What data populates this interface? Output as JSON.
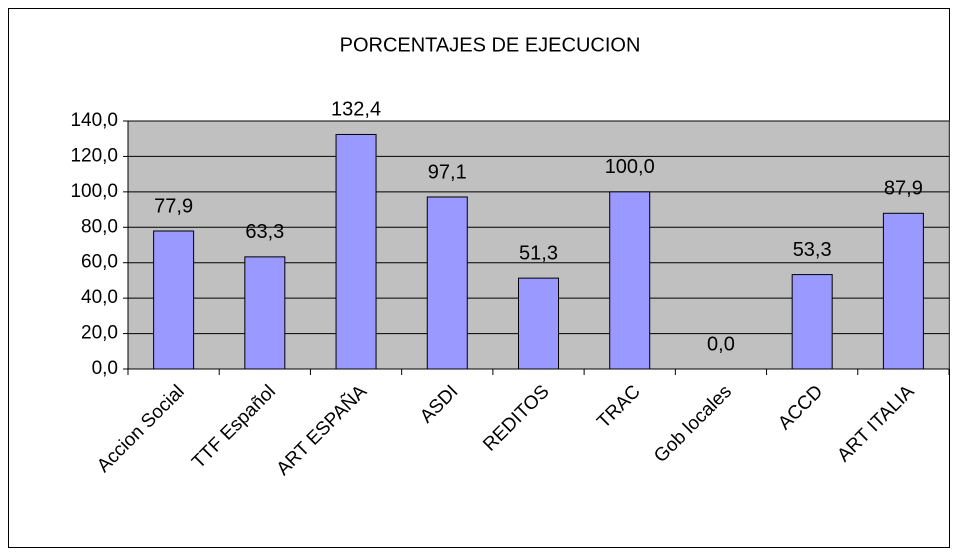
{
  "chart_data": {
    "type": "bar",
    "title": "PORCENTAJES DE EJECUCION",
    "categories": [
      "Accion Social",
      "TTF Español",
      "ART ESPAÑA",
      "ASDI",
      "REDITOS",
      "TRAC",
      "Gob locales",
      "ACCD",
      "ART ITALIA"
    ],
    "values": [
      77.9,
      63.3,
      132.4,
      97.1,
      51.3,
      100.0,
      0.0,
      53.3,
      87.9
    ],
    "value_labels": [
      "77,9",
      "63,3",
      "132,4",
      "97,1",
      "51,3",
      "100,0",
      "0,0",
      "53,3",
      "87,9"
    ],
    "color": "#9999ff",
    "ylim": [
      0,
      140
    ],
    "yticks": [
      {
        "value": 0,
        "label": "0,0"
      },
      {
        "value": 20,
        "label": "20,0"
      },
      {
        "value": 40,
        "label": "40,0"
      },
      {
        "value": 60,
        "label": "60,0"
      },
      {
        "value": 80,
        "label": "80,0"
      },
      {
        "value": 100,
        "label": "100,0"
      },
      {
        "value": 120,
        "label": "120,0"
      },
      {
        "value": 140,
        "label": "140,0"
      }
    ],
    "grid": true
  }
}
